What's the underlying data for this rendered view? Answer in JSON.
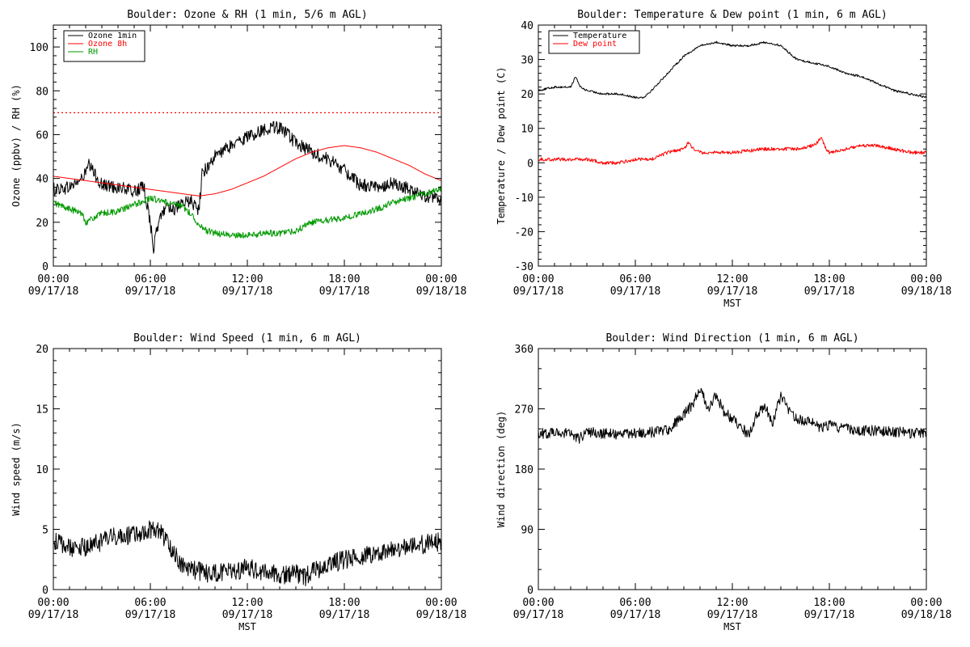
{
  "colors": {
    "black": "#000000",
    "red": "#ff0000",
    "green": "#009900"
  },
  "x_tick_labels": [
    [
      "00:00",
      "09/17/18"
    ],
    [
      "06:00",
      "09/17/18"
    ],
    [
      "12:00",
      "09/17/18"
    ],
    [
      "18:00",
      "09/17/18"
    ],
    [
      "00:00",
      "09/18/18"
    ]
  ],
  "chart_data": [
    {
      "id": "ozone",
      "type": "line",
      "title": "Boulder: Ozone & RH (1 min, 5/6 m AGL)",
      "xlabel": "",
      "ylabel": "Ozone (ppbv) / RH (%)",
      "x_unit": "hours since 00:00 09/17/18 MST",
      "xlim": [
        0,
        24
      ],
      "ylim": [
        0,
        110
      ],
      "yticks": [
        0,
        20,
        40,
        60,
        80,
        100
      ],
      "legend": "top-left",
      "reference_line": {
        "y": 70,
        "color": "#ff0000",
        "style": "dotted"
      },
      "series": [
        {
          "name": "Ozone 1min",
          "color": "#000000",
          "noise": 3,
          "x": [
            0,
            1,
            1.8,
            2.2,
            3,
            4,
            5,
            5.6,
            6,
            6.2,
            6.5,
            7,
            7.5,
            8,
            8.5,
            9,
            9.2,
            9.6,
            10,
            11,
            12,
            13,
            13.5,
            14,
            14.5,
            15,
            15.5,
            16,
            16.5,
            17,
            17.5,
            18,
            18.5,
            19,
            20,
            21,
            22,
            23,
            24
          ],
          "y": [
            35,
            36,
            40,
            46,
            37,
            36,
            34,
            36,
            20,
            8,
            20,
            28,
            26,
            28,
            30,
            25,
            42,
            46,
            50,
            55,
            59,
            62,
            64,
            63,
            60,
            56,
            54,
            52,
            50,
            49,
            46,
            44,
            40,
            37,
            36,
            38,
            35,
            32,
            30
          ]
        },
        {
          "name": "Ozone 8h",
          "color": "#ff0000",
          "noise": 0,
          "x": [
            0,
            2,
            4,
            6,
            8,
            9,
            10,
            11,
            12,
            13,
            14,
            15,
            16,
            17,
            18,
            19,
            20,
            21,
            22,
            23,
            24
          ],
          "y": [
            41,
            39,
            37,
            35,
            33,
            32,
            33,
            35,
            38,
            41,
            45,
            49,
            52,
            54,
            55,
            54,
            52,
            49,
            46,
            42,
            39
          ]
        },
        {
          "name": "RH",
          "color": "#009900",
          "noise": 1.5,
          "x": [
            0,
            1,
            1.8,
            2,
            3,
            4,
            5,
            6,
            7,
            7.5,
            8,
            8.5,
            9,
            9.5,
            10,
            11,
            12,
            13,
            14,
            15,
            16,
            17,
            18,
            19,
            20,
            21,
            22,
            23,
            24
          ],
          "y": [
            29,
            26,
            24,
            20,
            24,
            25,
            28,
            31,
            29,
            28,
            27,
            24,
            19,
            16,
            15,
            14,
            14,
            15,
            15,
            16,
            20,
            21,
            22,
            24,
            26,
            29,
            31,
            33,
            35
          ]
        }
      ]
    },
    {
      "id": "temp",
      "type": "line",
      "title": "Boulder: Temperature & Dew point (1 min, 6 m AGL)",
      "xlabel": "MST",
      "ylabel": "Temperature / Dew point (C)",
      "x_unit": "hours since 00:00 09/17/18 MST",
      "xlim": [
        0,
        24
      ],
      "ylim": [
        -30,
        40
      ],
      "yticks": [
        -30,
        -20,
        -10,
        0,
        10,
        20,
        30,
        40
      ],
      "legend": "top-left",
      "series": [
        {
          "name": "Temperature",
          "color": "#000000",
          "noise": 0.3,
          "x": [
            0,
            1,
            2,
            2.3,
            2.6,
            3,
            4,
            5,
            6,
            6.5,
            7,
            8,
            9,
            10,
            11,
            12,
            13,
            14,
            15,
            15.5,
            16,
            17,
            18,
            19,
            20,
            21,
            22,
            23,
            24
          ],
          "y": [
            21,
            22,
            22,
            25,
            22,
            21,
            20,
            20,
            19,
            19,
            21,
            26,
            31,
            34,
            35,
            34,
            34,
            35,
            34,
            32,
            30,
            29,
            28,
            26,
            25,
            23,
            21,
            20,
            19
          ]
        },
        {
          "name": "Dew point",
          "color": "#ff0000",
          "noise": 0.5,
          "x": [
            0,
            2,
            3,
            4,
            5,
            6,
            7,
            8,
            9,
            9.3,
            9.6,
            10,
            12,
            14,
            16,
            17,
            17.5,
            17.8,
            18,
            19,
            20,
            21,
            22,
            23,
            24
          ],
          "y": [
            1,
            1,
            1,
            0,
            0,
            1,
            1,
            3,
            4,
            6,
            4,
            3,
            3,
            4,
            4,
            5,
            7,
            4,
            3,
            4,
            5,
            5,
            4,
            3,
            3
          ]
        }
      ]
    },
    {
      "id": "wspd",
      "type": "line",
      "title": "Boulder: Wind Speed (1 min, 6 m AGL)",
      "xlabel": "MST",
      "ylabel": "Wind speed (m/s)",
      "x_unit": "hours since 00:00 09/17/18 MST",
      "xlim": [
        0,
        24
      ],
      "ylim": [
        0,
        20
      ],
      "yticks": [
        0,
        5,
        10,
        15,
        20
      ],
      "series": [
        {
          "name": "",
          "color": "#000000",
          "noise": 0.8,
          "x": [
            0,
            1,
            2,
            3,
            4,
            5,
            6,
            6.5,
            7,
            7.5,
            8,
            9,
            10,
            11,
            12,
            13,
            14,
            15,
            15.5,
            16,
            17,
            18,
            19,
            20,
            21,
            22,
            23,
            24
          ],
          "y": [
            4,
            3.5,
            3.5,
            4,
            4.5,
            4.5,
            5,
            5,
            4,
            3,
            2,
            1.5,
            1.3,
            1.5,
            1.8,
            1.5,
            1.2,
            1.3,
            1,
            1.5,
            2,
            2.5,
            2.8,
            3,
            3.5,
            3.5,
            3.8,
            4
          ]
        }
      ]
    },
    {
      "id": "wdir",
      "type": "line",
      "title": "Boulder: Wind Direction (1 min, 6 m AGL)",
      "xlabel": "MST",
      "ylabel": "Wind direction (deg)",
      "x_unit": "hours since 00:00 09/17/18 MST",
      "xlim": [
        0,
        24
      ],
      "ylim": [
        0,
        360
      ],
      "yticks": [
        0,
        90,
        180,
        270,
        360
      ],
      "series": [
        {
          "name": "",
          "color": "#000000",
          "noise": 8,
          "x": [
            0,
            1,
            2,
            2.5,
            3,
            4,
            5,
            6,
            7,
            8,
            8.5,
            9,
            9.5,
            10,
            10.5,
            11,
            11.5,
            12,
            12.5,
            13,
            13.5,
            14,
            14.5,
            15,
            15.5,
            16,
            17,
            17.5,
            18,
            19,
            20,
            21,
            22,
            23,
            24
          ],
          "y": [
            233,
            235,
            234,
            225,
            236,
            233,
            232,
            234,
            235,
            238,
            250,
            262,
            275,
            300,
            270,
            290,
            265,
            255,
            245,
            230,
            260,
            275,
            250,
            290,
            265,
            255,
            250,
            240,
            245,
            240,
            238,
            237,
            236,
            234,
            233
          ]
        }
      ]
    }
  ]
}
